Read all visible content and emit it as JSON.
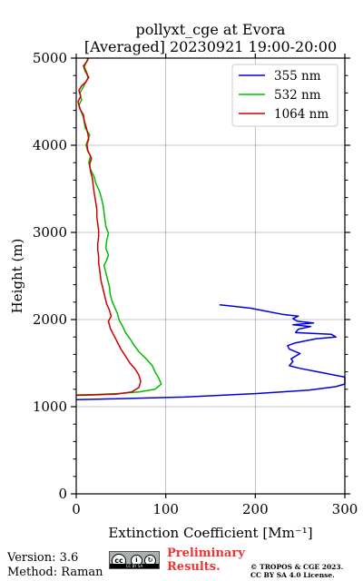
{
  "chart_data": {
    "type": "line",
    "title": "pollyxt_cge at Evora",
    "subtitle": "[Averaged] 20230921 19:00-20:00",
    "xlabel": "Extinction Coefficient [Mm⁻¹]",
    "ylabel": "Height (m)",
    "xlim": [
      0,
      300
    ],
    "ylim": [
      0,
      5000
    ],
    "xticks": [
      0,
      100,
      200,
      300
    ],
    "yticks": [
      0,
      1000,
      2000,
      3000,
      4000,
      5000
    ],
    "grid": true,
    "legend_position": "top-right",
    "series": [
      {
        "name": "355 nm",
        "color": "#0000dd",
        "points": [
          [
            0,
            1080
          ],
          [
            120,
            1110
          ],
          [
            200,
            1150
          ],
          [
            260,
            1190
          ],
          [
            290,
            1230
          ],
          [
            300,
            1260
          ],
          [
            300,
            1340
          ],
          [
            270,
            1400
          ],
          [
            250,
            1440
          ],
          [
            238,
            1470
          ],
          [
            242,
            1520
          ],
          [
            240,
            1550
          ],
          [
            250,
            1610
          ],
          [
            238,
            1660
          ],
          [
            236,
            1700
          ],
          [
            244,
            1730
          ],
          [
            268,
            1780
          ],
          [
            290,
            1800
          ],
          [
            285,
            1830
          ],
          [
            245,
            1850
          ],
          [
            248,
            1890
          ],
          [
            262,
            1920
          ],
          [
            242,
            1940
          ],
          [
            265,
            1960
          ],
          [
            247,
            1980
          ],
          [
            242,
            2010
          ],
          [
            248,
            2040
          ],
          [
            230,
            2060
          ],
          [
            215,
            2090
          ],
          [
            195,
            2130
          ],
          [
            160,
            2170
          ]
        ]
      },
      {
        "name": "532 nm",
        "color": "#00bb00",
        "points": [
          [
            0,
            1135
          ],
          [
            20,
            1140
          ],
          [
            45,
            1150
          ],
          [
            70,
            1170
          ],
          [
            88,
            1200
          ],
          [
            95,
            1260
          ],
          [
            92,
            1330
          ],
          [
            88,
            1400
          ],
          [
            85,
            1470
          ],
          [
            78,
            1550
          ],
          [
            70,
            1630
          ],
          [
            65,
            1700
          ],
          [
            60,
            1780
          ],
          [
            55,
            1850
          ],
          [
            52,
            1920
          ],
          [
            48,
            1990
          ],
          [
            46,
            2070
          ],
          [
            43,
            2140
          ],
          [
            40,
            2210
          ],
          [
            38,
            2290
          ],
          [
            37,
            2380
          ],
          [
            35,
            2460
          ],
          [
            33,
            2540
          ],
          [
            31,
            2620
          ],
          [
            34,
            2680
          ],
          [
            36,
            2740
          ],
          [
            33,
            2820
          ],
          [
            34,
            2900
          ],
          [
            36,
            2990
          ],
          [
            33,
            3070
          ],
          [
            32,
            3150
          ],
          [
            31,
            3230
          ],
          [
            30,
            3310
          ],
          [
            28,
            3400
          ],
          [
            26,
            3470
          ],
          [
            22,
            3560
          ],
          [
            20,
            3640
          ],
          [
            16,
            3720
          ],
          [
            14,
            3800
          ],
          [
            16,
            3880
          ],
          [
            13,
            3930
          ],
          [
            11,
            4000
          ],
          [
            13,
            4060
          ],
          [
            15,
            4120
          ],
          [
            10,
            4200
          ],
          [
            9,
            4260
          ],
          [
            8,
            4320
          ],
          [
            5,
            4400
          ],
          [
            3,
            4460
          ],
          [
            6,
            4520
          ],
          [
            4,
            4600
          ],
          [
            7,
            4650
          ],
          [
            10,
            4710
          ],
          [
            13,
            4770
          ],
          [
            12,
            4830
          ],
          [
            9,
            4900
          ],
          [
            11,
            4950
          ],
          [
            14,
            5000
          ]
        ]
      },
      {
        "name": "1064 nm",
        "color": "#cc0000",
        "points": [
          [
            0,
            1130
          ],
          [
            20,
            1135
          ],
          [
            45,
            1145
          ],
          [
            62,
            1170
          ],
          [
            70,
            1220
          ],
          [
            72,
            1290
          ],
          [
            70,
            1360
          ],
          [
            66,
            1430
          ],
          [
            60,
            1500
          ],
          [
            55,
            1580
          ],
          [
            50,
            1660
          ],
          [
            46,
            1740
          ],
          [
            42,
            1820
          ],
          [
            38,
            1900
          ],
          [
            36,
            1980
          ],
          [
            39,
            2040
          ],
          [
            37,
            2110
          ],
          [
            34,
            2180
          ],
          [
            32,
            2260
          ],
          [
            30,
            2350
          ],
          [
            28,
            2430
          ],
          [
            27,
            2500
          ],
          [
            26,
            2580
          ],
          [
            25,
            2650
          ],
          [
            25,
            2720
          ],
          [
            24,
            2800
          ],
          [
            24,
            2870
          ],
          [
            25,
            2950
          ],
          [
            25,
            3020
          ],
          [
            24,
            3100
          ],
          [
            23,
            3180
          ],
          [
            23,
            3260
          ],
          [
            22,
            3330
          ],
          [
            21,
            3400
          ],
          [
            20,
            3460
          ],
          [
            19,
            3540
          ],
          [
            18,
            3620
          ],
          [
            16,
            3700
          ],
          [
            15,
            3780
          ],
          [
            17,
            3850
          ],
          [
            13,
            3940
          ],
          [
            12,
            4010
          ],
          [
            14,
            4070
          ],
          [
            13,
            4130
          ],
          [
            11,
            4210
          ],
          [
            9,
            4280
          ],
          [
            8,
            4350
          ],
          [
            4,
            4420
          ],
          [
            2,
            4500
          ],
          [
            5,
            4560
          ],
          [
            3,
            4630
          ],
          [
            6,
            4680
          ],
          [
            11,
            4730
          ],
          [
            14,
            4780
          ],
          [
            10,
            4850
          ],
          [
            8,
            4910
          ],
          [
            12,
            4960
          ],
          [
            13,
            5000
          ]
        ]
      }
    ]
  },
  "footer": {
    "version": "Version: 3.6",
    "method": "Method: Raman",
    "license_badge": "CC BY SA",
    "preliminary_1": "Preliminary",
    "preliminary_2": "Results.",
    "copyright_1": "© TROPOS & CGE 2023.",
    "copyright_2": "CC BY SA 4.0 License."
  }
}
